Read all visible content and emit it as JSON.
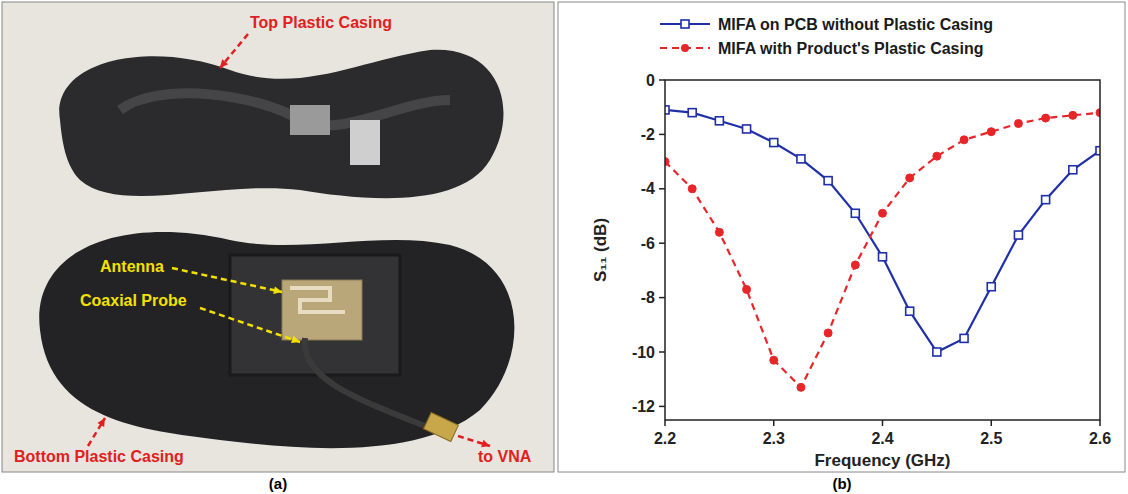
{
  "chart_data": {
    "type": "line",
    "xlabel": "Frequency (GHz)",
    "ylabel": "S₁₁ (dB)",
    "x": [
      2.2,
      2.225,
      2.25,
      2.275,
      2.3,
      2.325,
      2.35,
      2.375,
      2.4,
      2.425,
      2.45,
      2.475,
      2.5,
      2.525,
      2.55,
      2.575,
      2.6
    ],
    "series": [
      {
        "name": "MIFA on PCB without Plastic Casing",
        "color": "#1f2fa8",
        "marker": "square",
        "line_style": "solid",
        "values": [
          -1.1,
          -1.2,
          -1.5,
          -1.8,
          -2.3,
          -2.9,
          -3.7,
          -4.9,
          -6.5,
          -8.5,
          -10.0,
          -9.5,
          -7.6,
          -5.7,
          -4.4,
          -3.3,
          -2.6
        ]
      },
      {
        "name": "MIFA with Product's Plastic Casing",
        "color": "#e8262a",
        "marker": "circle",
        "line_style": "dashed",
        "values": [
          -3.0,
          -4.0,
          -5.6,
          -7.7,
          -10.3,
          -11.3,
          -9.3,
          -6.8,
          -4.9,
          -3.6,
          -2.8,
          -2.2,
          -1.9,
          -1.6,
          -1.4,
          -1.3,
          -1.2
        ]
      }
    ],
    "xlim": [
      2.2,
      2.6
    ],
    "xticks": [
      2.2,
      2.3,
      2.4,
      2.5,
      2.6
    ],
    "ylim": [
      -12.5,
      0
    ],
    "yticks": [
      0,
      -2,
      -4,
      -6,
      -8,
      -10,
      -12
    ],
    "grid": false,
    "legend": "top"
  },
  "photo": {
    "labels": {
      "top_casing": "Top Plastic Casing",
      "antenna": "Antenna",
      "probe": "Coaxial Probe",
      "bottom_casing": "Bottom Plastic Casing",
      "vna": "to VNA"
    }
  },
  "captions": [
    "(a)",
    "(b)"
  ]
}
